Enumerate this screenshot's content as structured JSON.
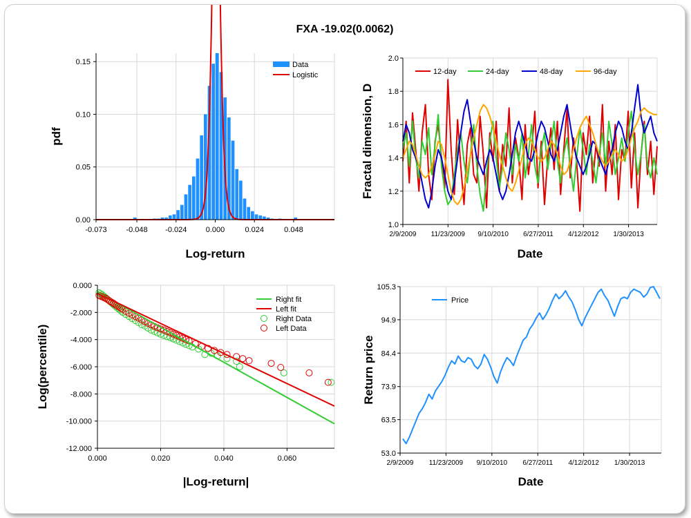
{
  "title": "FXA -19.02(0.0062)",
  "chart_data": [
    {
      "type": "bar",
      "id": "pdf",
      "xlabel": "Log-return",
      "ylabel": "pdf",
      "xlim": [
        -0.073,
        0.073
      ],
      "ylim": [
        0,
        0.158
      ],
      "x_ticks": [
        -0.073,
        -0.048,
        -0.024,
        0.0,
        0.024,
        0.048
      ],
      "x_tick_labels": [
        "-0.073",
        "-0.048",
        "-0.024",
        "0.000",
        "0.024",
        "0.048"
      ],
      "y_ticks": [
        0,
        0.05,
        0.1,
        0.15
      ],
      "y_tick_labels": [
        "0.00",
        "0.05",
        "0.10",
        "0.15"
      ],
      "legend": [
        "Data",
        "Logistic"
      ],
      "legend_position": "top-right",
      "colors": {
        "Data": "#1e90ff",
        "Logistic": "#e00000"
      },
      "bin_width": 0.0024,
      "bars": [
        {
          "x": -0.0492,
          "y": 0.002
        },
        {
          "x": -0.0372,
          "y": 0.001
        },
        {
          "x": -0.0348,
          "y": 0.001
        },
        {
          "x": -0.0324,
          "y": 0.002
        },
        {
          "x": -0.03,
          "y": 0.002
        },
        {
          "x": -0.0276,
          "y": 0.004
        },
        {
          "x": -0.0252,
          "y": 0.005
        },
        {
          "x": -0.0228,
          "y": 0.009
        },
        {
          "x": -0.0204,
          "y": 0.014
        },
        {
          "x": -0.018,
          "y": 0.024
        },
        {
          "x": -0.0156,
          "y": 0.033
        },
        {
          "x": -0.0132,
          "y": 0.041
        },
        {
          "x": -0.0108,
          "y": 0.058
        },
        {
          "x": -0.0084,
          "y": 0.08
        },
        {
          "x": -0.006,
          "y": 0.1
        },
        {
          "x": -0.0036,
          "y": 0.127
        },
        {
          "x": -0.0012,
          "y": 0.148
        },
        {
          "x": 0.0012,
          "y": 0.158
        },
        {
          "x": 0.0036,
          "y": 0.14
        },
        {
          "x": 0.006,
          "y": 0.116
        },
        {
          "x": 0.0084,
          "y": 0.097
        },
        {
          "x": 0.0108,
          "y": 0.075
        },
        {
          "x": 0.0132,
          "y": 0.048
        },
        {
          "x": 0.0156,
          "y": 0.037
        },
        {
          "x": 0.018,
          "y": 0.02
        },
        {
          "x": 0.0204,
          "y": 0.012
        },
        {
          "x": 0.0228,
          "y": 0.008
        },
        {
          "x": 0.0252,
          "y": 0.005
        },
        {
          "x": 0.0276,
          "y": 0.004
        },
        {
          "x": 0.03,
          "y": 0.003
        },
        {
          "x": 0.0324,
          "y": 0.002
        },
        {
          "x": 0.0348,
          "y": 0.001
        },
        {
          "x": 0.0396,
          "y": 0.001
        },
        {
          "x": 0.0492,
          "y": 0.002
        }
      ],
      "logistic": {
        "mu": 0.0005,
        "s": 0.0016
      }
    },
    {
      "type": "line",
      "id": "fractal",
      "xlabel": "Date",
      "ylabel": "Fractal dimension, D",
      "ylim": [
        1.0,
        2.0
      ],
      "y_ticks": [
        1.0,
        1.2,
        1.4,
        1.6,
        1.8,
        2.0
      ],
      "y_tick_labels": [
        "1.0",
        "1.2",
        "1.4",
        "1.6",
        "1.8",
        "2.0"
      ],
      "x_tick_labels": [
        "2/9/2009",
        "11/23/2009",
        "9/10/2010",
        "6/27/2011",
        "4/12/2012",
        "1/30/2013"
      ],
      "legend_position": "top",
      "series": [
        {
          "name": "12-day",
          "color": "#e00000",
          "values": [
            1.38,
            1.62,
            1.25,
            1.67,
            1.45,
            1.2,
            1.55,
            1.72,
            1.3,
            1.15,
            1.5,
            1.6,
            1.4,
            1.22,
            1.87,
            1.45,
            1.18,
            1.63,
            1.35,
            1.12,
            1.48,
            1.58,
            1.3,
            1.25,
            1.65,
            1.42,
            1.1,
            1.55,
            1.38,
            1.62,
            1.2,
            1.48,
            1.35,
            1.7,
            1.25,
            1.52,
            1.4,
            1.15,
            1.6,
            1.3,
            1.45,
            1.68,
            1.22,
            1.5,
            1.12,
            1.4,
            1.58,
            1.33,
            1.62,
            1.18,
            1.45,
            1.7,
            1.28,
            1.52,
            1.38,
            1.08,
            1.55,
            1.42,
            1.65,
            1.25,
            1.48,
            1.35,
            1.72,
            1.2,
            1.5,
            1.3,
            1.6,
            1.15,
            1.45,
            1.38,
            1.68,
            1.22,
            1.55,
            1.1,
            1.42,
            1.62,
            1.3,
            1.5,
            1.18,
            1.47
          ]
        },
        {
          "name": "24-day",
          "color": "#33cc33",
          "values": [
            1.45,
            1.55,
            1.35,
            1.62,
            1.4,
            1.28,
            1.5,
            1.42,
            1.58,
            1.3,
            1.48,
            1.66,
            1.35,
            1.2,
            1.12,
            1.15,
            1.3,
            1.45,
            1.55,
            1.38,
            1.25,
            1.42,
            1.6,
            1.35,
            1.18,
            1.08,
            1.3,
            1.5,
            1.62,
            1.4,
            1.22,
            1.35,
            1.55,
            1.45,
            1.3,
            1.48,
            1.38,
            1.55,
            1.28,
            1.42,
            1.6,
            1.35,
            1.25,
            1.45,
            1.55,
            1.33,
            1.48,
            1.62,
            1.38,
            1.25,
            1.42,
            1.52,
            1.35,
            1.2,
            1.4,
            1.58,
            1.45,
            1.3,
            1.48,
            1.38,
            1.25,
            1.42,
            1.55,
            1.35,
            1.62,
            1.48,
            1.3,
            1.4,
            1.52,
            1.38,
            1.55,
            1.68,
            1.45,
            1.3,
            1.42,
            1.6,
            1.35,
            1.28,
            1.4,
            1.3
          ]
        },
        {
          "name": "48-day",
          "color": "#0000cc",
          "values": [
            1.5,
            1.6,
            1.55,
            1.45,
            1.4,
            1.35,
            1.25,
            1.15,
            1.1,
            1.2,
            1.35,
            1.45,
            1.4,
            1.3,
            1.2,
            1.15,
            1.25,
            1.4,
            1.55,
            1.68,
            1.75,
            1.62,
            1.5,
            1.4,
            1.35,
            1.3,
            1.38,
            1.45,
            1.4,
            1.3,
            1.2,
            1.15,
            1.2,
            1.3,
            1.42,
            1.55,
            1.62,
            1.55,
            1.48,
            1.4,
            1.38,
            1.45,
            1.55,
            1.62,
            1.58,
            1.5,
            1.42,
            1.38,
            1.45,
            1.55,
            1.65,
            1.72,
            1.6,
            1.48,
            1.4,
            1.35,
            1.3,
            1.35,
            1.42,
            1.5,
            1.48,
            1.4,
            1.35,
            1.3,
            1.38,
            1.45,
            1.55,
            1.62,
            1.58,
            1.5,
            1.45,
            1.55,
            1.7,
            1.84,
            1.65,
            1.55,
            1.6,
            1.65,
            1.55,
            1.5
          ]
        },
        {
          "name": "96-day",
          "color": "#ffa500",
          "values": [
            1.4,
            1.45,
            1.5,
            1.48,
            1.42,
            1.35,
            1.3,
            1.28,
            1.3,
            1.35,
            1.42,
            1.5,
            1.48,
            1.4,
            1.3,
            1.2,
            1.14,
            1.12,
            1.15,
            1.22,
            1.32,
            1.42,
            1.52,
            1.6,
            1.68,
            1.72,
            1.7,
            1.65,
            1.58,
            1.5,
            1.42,
            1.35,
            1.28,
            1.22,
            1.2,
            1.25,
            1.32,
            1.4,
            1.48,
            1.52,
            1.5,
            1.45,
            1.4,
            1.38,
            1.4,
            1.45,
            1.5,
            1.48,
            1.42,
            1.35,
            1.3,
            1.32,
            1.38,
            1.45,
            1.52,
            1.58,
            1.62,
            1.65,
            1.6,
            1.55,
            1.48,
            1.42,
            1.38,
            1.35,
            1.38,
            1.42,
            1.45,
            1.42,
            1.38,
            1.4,
            1.45,
            1.52,
            1.58,
            1.62,
            1.68,
            1.7,
            1.68,
            1.67,
            1.66,
            1.66
          ]
        }
      ]
    },
    {
      "type": "scatter",
      "id": "tail",
      "xlabel": "|Log-return|",
      "ylabel": "Log(percentile)",
      "xlim": [
        0,
        0.075
      ],
      "ylim": [
        -12,
        0
      ],
      "x_ticks": [
        0,
        0.02,
        0.04,
        0.06
      ],
      "x_tick_labels": [
        "0.000",
        "0.020",
        "0.040",
        "0.060"
      ],
      "y_ticks": [
        0,
        -2,
        -4,
        -6,
        -8,
        -10,
        -12
      ],
      "y_tick_labels": [
        "0.000",
        "-2.000",
        "-4.000",
        "-6.000",
        "-8.000",
        "-10.000",
        "-12.000"
      ],
      "legend": [
        "Right fit",
        "Left fit",
        "Right Data",
        "Left Data"
      ],
      "legend_position": "top-right",
      "colors": {
        "Right": "#33cc33",
        "Left": "#e00000"
      },
      "right_fit": {
        "x": [
          0,
          0.075
        ],
        "y": [
          -0.5,
          -10.2
        ]
      },
      "left_fit": {
        "x": [
          0,
          0.075
        ],
        "y": [
          -0.6,
          -8.9
        ]
      },
      "right_data": [
        [
          0.0005,
          -0.55
        ],
        [
          0.001,
          -0.62
        ],
        [
          0.0015,
          -0.7
        ],
        [
          0.002,
          -0.8
        ],
        [
          0.0025,
          -0.9
        ],
        [
          0.003,
          -1.0
        ],
        [
          0.0035,
          -1.1
        ],
        [
          0.004,
          -1.2
        ],
        [
          0.0045,
          -1.3
        ],
        [
          0.005,
          -1.4
        ],
        [
          0.0055,
          -1.5
        ],
        [
          0.006,
          -1.6
        ],
        [
          0.0065,
          -1.7
        ],
        [
          0.007,
          -1.8
        ],
        [
          0.0075,
          -1.9
        ],
        [
          0.008,
          -2.0
        ],
        [
          0.009,
          -2.15
        ],
        [
          0.01,
          -2.3
        ],
        [
          0.011,
          -2.45
        ],
        [
          0.012,
          -2.6
        ],
        [
          0.013,
          -2.75
        ],
        [
          0.014,
          -2.9
        ],
        [
          0.015,
          -3.0
        ],
        [
          0.016,
          -3.15
        ],
        [
          0.017,
          -3.3
        ],
        [
          0.018,
          -3.4
        ],
        [
          0.019,
          -3.5
        ],
        [
          0.02,
          -3.6
        ],
        [
          0.021,
          -3.7
        ],
        [
          0.022,
          -3.78
        ],
        [
          0.023,
          -3.85
        ],
        [
          0.024,
          -3.95
        ],
        [
          0.025,
          -4.05
        ],
        [
          0.026,
          -4.15
        ],
        [
          0.027,
          -4.25
        ],
        [
          0.028,
          -4.35
        ],
        [
          0.029,
          -4.45
        ],
        [
          0.03,
          -4.55
        ],
        [
          0.032,
          -4.7
        ],
        [
          0.034,
          -5.1
        ],
        [
          0.036,
          -5.0
        ],
        [
          0.038,
          -5.2
        ],
        [
          0.041,
          -5.4
        ],
        [
          0.044,
          -5.6
        ],
        [
          0.045,
          -6.0
        ],
        [
          0.059,
          -6.45
        ],
        [
          0.074,
          -7.15
        ]
      ],
      "left_data": [
        [
          0.0005,
          -0.75
        ],
        [
          0.001,
          -0.8
        ],
        [
          0.0015,
          -0.85
        ],
        [
          0.002,
          -0.9
        ],
        [
          0.0025,
          -0.95
        ],
        [
          0.003,
          -1.02
        ],
        [
          0.0035,
          -1.1
        ],
        [
          0.004,
          -1.18
        ],
        [
          0.0045,
          -1.25
        ],
        [
          0.005,
          -1.32
        ],
        [
          0.0055,
          -1.4
        ],
        [
          0.006,
          -1.48
        ],
        [
          0.0065,
          -1.55
        ],
        [
          0.007,
          -1.62
        ],
        [
          0.0075,
          -1.7
        ],
        [
          0.008,
          -1.78
        ],
        [
          0.009,
          -1.92
        ],
        [
          0.01,
          -2.05
        ],
        [
          0.011,
          -2.18
        ],
        [
          0.012,
          -2.3
        ],
        [
          0.013,
          -2.42
        ],
        [
          0.014,
          -2.55
        ],
        [
          0.015,
          -2.68
        ],
        [
          0.016,
          -2.8
        ],
        [
          0.017,
          -2.92
        ],
        [
          0.018,
          -3.03
        ],
        [
          0.019,
          -3.13
        ],
        [
          0.02,
          -3.22
        ],
        [
          0.021,
          -3.3
        ],
        [
          0.022,
          -3.4
        ],
        [
          0.023,
          -3.5
        ],
        [
          0.024,
          -3.6
        ],
        [
          0.025,
          -3.7
        ],
        [
          0.026,
          -3.8
        ],
        [
          0.027,
          -3.9
        ],
        [
          0.028,
          -4.0
        ],
        [
          0.029,
          -4.1
        ],
        [
          0.031,
          -4.3
        ],
        [
          0.033,
          -4.5
        ],
        [
          0.035,
          -4.65
        ],
        [
          0.037,
          -4.8
        ],
        [
          0.039,
          -4.95
        ],
        [
          0.041,
          -5.1
        ],
        [
          0.044,
          -5.25
        ],
        [
          0.046,
          -5.4
        ],
        [
          0.048,
          -5.55
        ],
        [
          0.055,
          -5.75
        ],
        [
          0.058,
          -6.05
        ],
        [
          0.067,
          -6.45
        ],
        [
          0.073,
          -7.15
        ]
      ]
    },
    {
      "type": "line",
      "id": "price",
      "xlabel": "Date",
      "ylabel": "Return price",
      "ylim": [
        53.0,
        105.3
      ],
      "y_ticks": [
        53.0,
        63.5,
        73.9,
        84.4,
        94.9,
        105.3
      ],
      "y_tick_labels": [
        "53.0",
        "63.5",
        "73.9",
        "84.4",
        "94.9",
        "105.3"
      ],
      "x_tick_labels": [
        "2/9/2009",
        "11/23/2009",
        "9/10/2010",
        "6/27/2011",
        "4/12/2012",
        "1/30/2013"
      ],
      "legend": [
        "Price"
      ],
      "legend_position": "top-left",
      "colors": {
        "Price": "#1e90ff"
      },
      "series": [
        {
          "name": "Price",
          "values": [
            57.5,
            56.0,
            58.0,
            60.5,
            63.0,
            65.5,
            67.0,
            69.0,
            71.5,
            70.0,
            72.5,
            74.0,
            75.5,
            77.5,
            80.0,
            82.0,
            81.0,
            83.5,
            82.0,
            81.5,
            83.0,
            82.5,
            80.5,
            79.5,
            81.0,
            84.0,
            82.5,
            80.0,
            77.0,
            75.0,
            78.5,
            81.0,
            83.0,
            82.0,
            80.5,
            83.5,
            86.0,
            88.5,
            89.5,
            92.0,
            93.5,
            95.5,
            97.0,
            95.0,
            96.5,
            98.5,
            101.0,
            103.0,
            101.5,
            102.5,
            104.0,
            102.0,
            100.5,
            98.0,
            95.0,
            93.0,
            95.5,
            97.5,
            99.5,
            101.5,
            103.5,
            104.5,
            102.5,
            101.0,
            98.5,
            96.0,
            99.0,
            101.5,
            102.0,
            101.5,
            103.5,
            104.5,
            104.0,
            103.5,
            102.0,
            103.0,
            105.0,
            105.3,
            103.5,
            101.5
          ]
        }
      ]
    }
  ]
}
